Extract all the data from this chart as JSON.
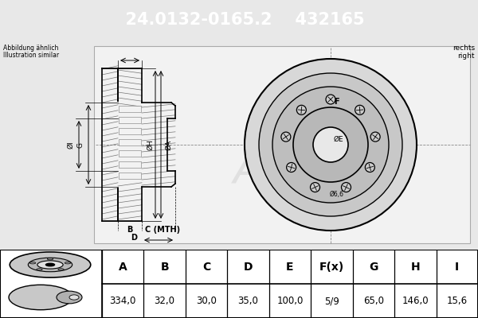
{
  "title_part_number": "24.0132-0165.2",
  "title_ref_number": "432165",
  "header_bg": "#1a5276",
  "header_text_color": "#ffffff",
  "bg_color": "#e8e8e8",
  "diagram_bg": "#e8e8e8",
  "table_bg": "#ffffff",
  "border_color": "#000000",
  "text_color": "#000000",
  "note_text": [
    "Abbildung ähnlich",
    "Illustration similar"
  ],
  "position_text": [
    "rechts",
    "right"
  ],
  "table_headers": [
    "A",
    "B",
    "C",
    "D",
    "E",
    "F(x)",
    "G",
    "H",
    "I"
  ],
  "table_values": [
    "334,0",
    "32,0",
    "30,0",
    "35,0",
    "100,0",
    "5/9",
    "65,0",
    "146,0",
    "15,6"
  ],
  "hole_label": "Ø6,6",
  "label_phA": "ØA",
  "label_phH": "ØH",
  "label_phI": "ØI",
  "label_phE": "ØE",
  "label_G": "G",
  "label_F": "F",
  "label_B": "B",
  "label_C": "C (MTH)",
  "label_D": "D",
  "watermark": "Ate"
}
